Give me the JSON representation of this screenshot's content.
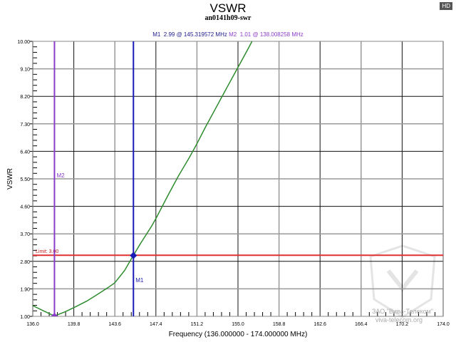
{
  "header": {
    "title": "VSWR",
    "subtitle": "an0141h09-swr",
    "hd_badge": "HD"
  },
  "markers_info": {
    "m1_label": "M1",
    "m1_value": "2.99 @ 145.319572 MHz",
    "m2_label": "M2",
    "m2_value": "1.01 @ 138.008258 MHz"
  },
  "limit_label": "Limit: 3.00",
  "watermark": {
    "line1": "ЗАО \"Вива-Телеком\"",
    "line2": "viva-telecom.org"
  },
  "chart_data": {
    "type": "line",
    "title": "VSWR",
    "subtitle": "an0141h09-swr",
    "xlabel": "Frequency (136.000000 - 174.000000 MHz)",
    "ylabel": "VSWR",
    "xlim": [
      136.0,
      174.0
    ],
    "ylim": [
      1.0,
      10.0
    ],
    "x_ticks": [
      "136.0",
      "139.8",
      "143.6",
      "147.4",
      "151.2",
      "155.0",
      "158.8",
      "162.6",
      "166.4",
      "170.2",
      "174.0"
    ],
    "y_ticks": [
      "10.00",
      "9.10",
      "8.20",
      "7.30",
      "6.40",
      "5.50",
      "4.60",
      "3.70",
      "2.80",
      "1.90",
      "1.00"
    ],
    "grid": true,
    "series": [
      {
        "name": "VSWR",
        "color": "#2e8b2e",
        "x": [
          136.0,
          137.0,
          138.0,
          139.0,
          140.0,
          141.0,
          142.0,
          143.0,
          143.6,
          144.5,
          145.3,
          146.0,
          147.0,
          147.4,
          148.5,
          149.5,
          150.5,
          151.2,
          152.0,
          153.0,
          154.0,
          155.0,
          156.0,
          156.3
        ],
        "y": [
          1.35,
          1.18,
          1.01,
          1.15,
          1.32,
          1.5,
          1.72,
          1.95,
          2.1,
          2.5,
          2.99,
          3.4,
          3.95,
          4.2,
          4.95,
          5.6,
          6.2,
          6.65,
          7.2,
          7.85,
          8.5,
          9.15,
          9.8,
          10.0
        ]
      }
    ],
    "markers": [
      {
        "name": "M1",
        "x": 145.319572,
        "y": 2.99,
        "color": "#1a1ab4"
      },
      {
        "name": "M2",
        "x": 138.008258,
        "y": 1.01,
        "color": "#8a3cc8"
      }
    ],
    "limit_line": {
      "label": "Limit: 3.00",
      "y": 3.0,
      "color": "#e03030"
    }
  }
}
